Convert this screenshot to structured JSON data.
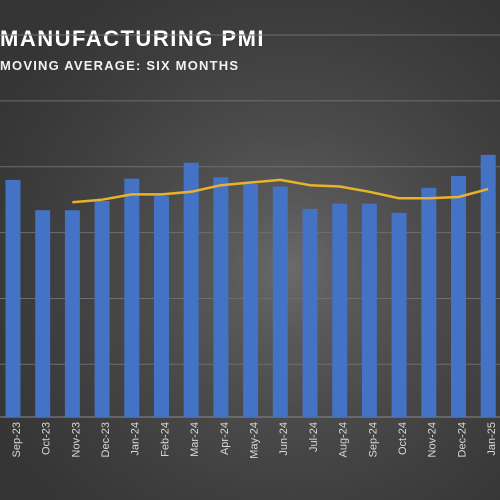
{
  "chart_data": {
    "type": "bar",
    "title": "MANUFACTURING PMI",
    "subtitle": "MOVING AVERAGE: SIX MONTHS",
    "categories": [
      "Sep-23",
      "Oct-23",
      "Nov-23",
      "Dec-23",
      "Jan-24",
      "Feb-24",
      "Mar-24",
      "Apr-24",
      "May-24",
      "Jun-24",
      "Jul-24",
      "Aug-24",
      "Sep-24",
      "Oct-24",
      "Nov-24",
      "Dec-24",
      "Jan-25"
    ],
    "series": [
      {
        "type": "bar",
        "values": [
          49.0,
          46.7,
          46.7,
          47.4,
          49.1,
          47.8,
          50.3,
          49.2,
          48.7,
          48.5,
          46.8,
          47.2,
          47.2,
          46.5,
          48.4,
          49.3,
          50.9
        ],
        "color": "#4472c4"
      },
      {
        "type": "line",
        "values": [
          null,
          null,
          47.3,
          47.5,
          47.9,
          47.9,
          48.1,
          48.6,
          48.8,
          49.0,
          48.6,
          48.5,
          48.1,
          47.6,
          47.6,
          47.7,
          48.3
        ],
        "color": "#e8b32a"
      }
    ],
    "ylim": [
      31,
      60
    ],
    "gridlines": [
      35,
      40,
      45,
      50,
      55,
      60
    ],
    "grid": true,
    "xlabel": "",
    "ylabel": ""
  }
}
